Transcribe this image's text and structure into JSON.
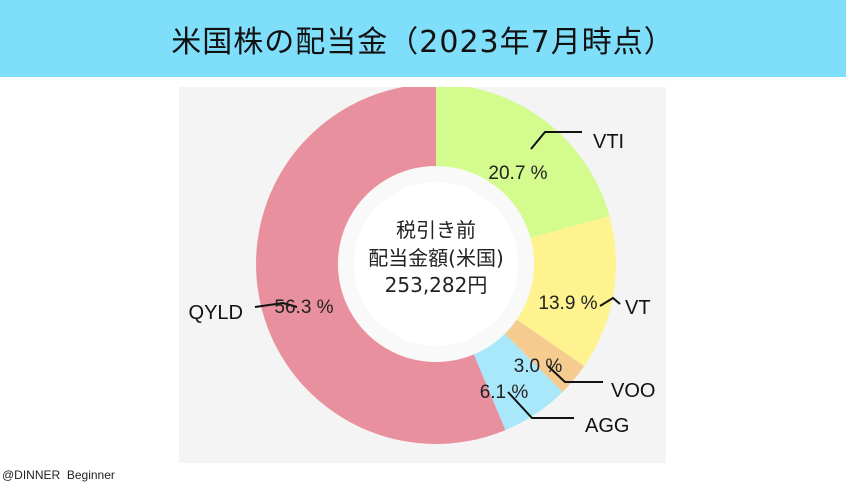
{
  "title": "米国株の配当金（2023年7月時点）",
  "credit": "@DINNER  Beginner",
  "chart_data": {
    "type": "donut",
    "title": "米国株の配当金（2023年7月時点）",
    "center_label": [
      "税引き前",
      "配当金額(米国)",
      "253,282円"
    ],
    "slices": [
      {
        "label": "VTI",
        "value": 20.7,
        "pct_label": "20.7 %",
        "color": "#d3fb8e"
      },
      {
        "label": "VT",
        "value": 13.9,
        "pct_label": "13.9 %",
        "color": "#fef38f"
      },
      {
        "label": "VOO",
        "value": 3.0,
        "pct_label": "3.0 %",
        "color": "#f5cb8f"
      },
      {
        "label": "AGG",
        "value": 6.1,
        "pct_label": "6.1 %",
        "color": "#a9e8fb"
      },
      {
        "label": "QYLD",
        "value": 56.3,
        "pct_label": "56.3 %",
        "color": "#e9909e"
      }
    ]
  }
}
